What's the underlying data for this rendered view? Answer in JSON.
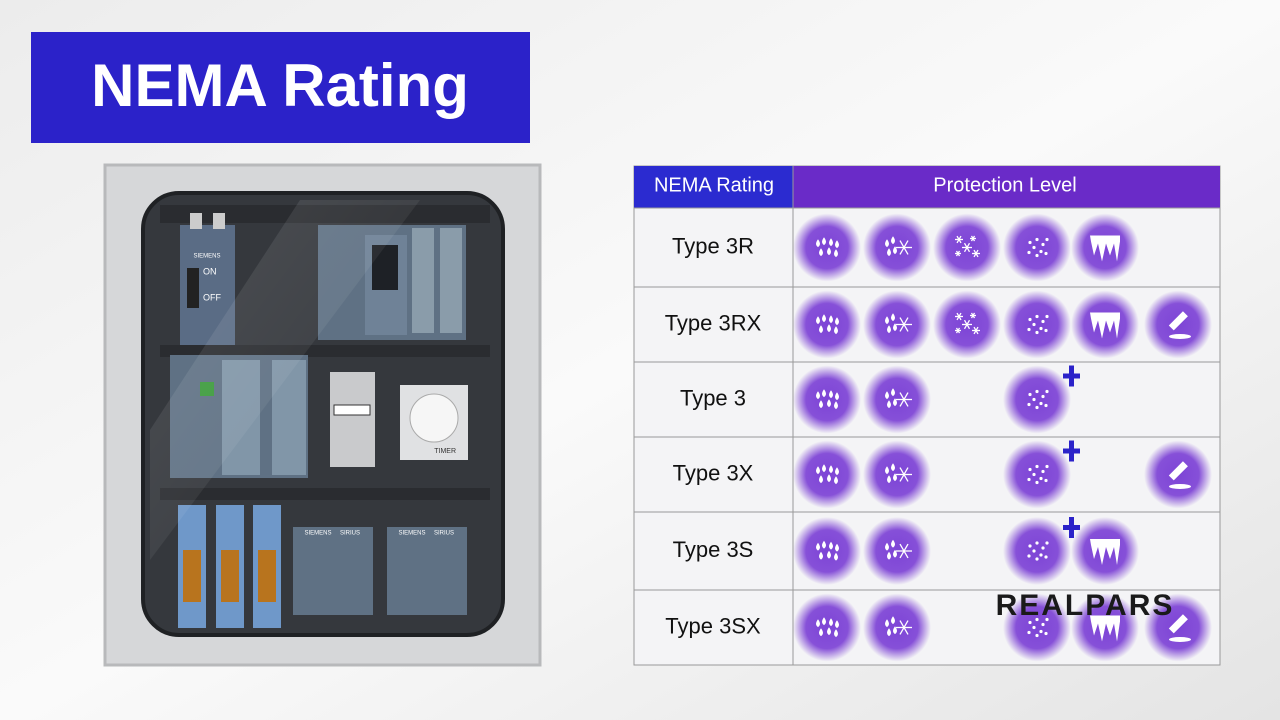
{
  "title": "NEMA Rating",
  "table": {
    "headers": [
      "NEMA Rating",
      "Protection Level"
    ],
    "rows": [
      "Type 3R",
      "Type 3RX",
      "Type 3",
      "Type 3X",
      "Type 3S",
      "Type 3SX"
    ]
  },
  "enclosure": {
    "labels": [
      "SIEMENS",
      "ON",
      "OFF",
      "TIMER",
      "SIRIUS"
    ]
  },
  "watermark": "REALPARS"
}
